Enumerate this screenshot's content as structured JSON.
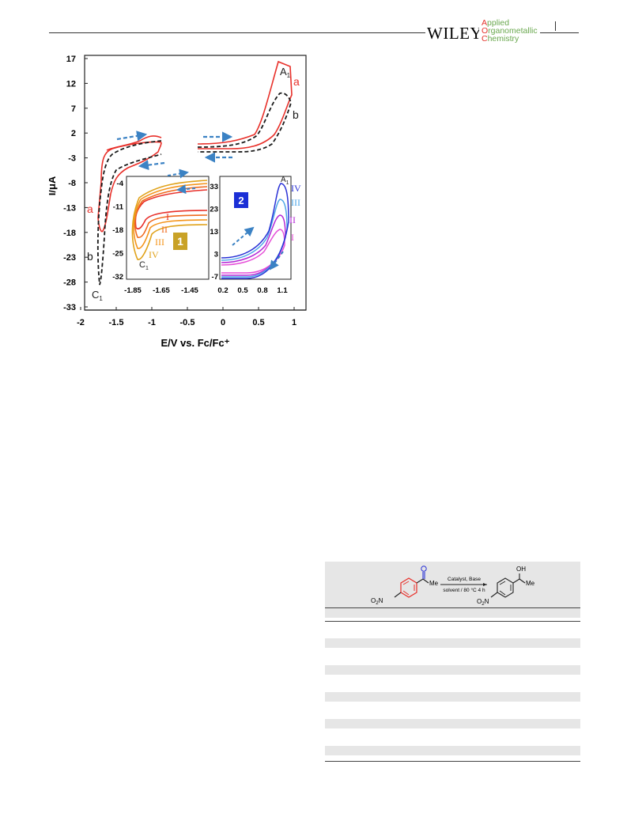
{
  "header": {
    "publisher": "WILEY",
    "journal_lines": [
      {
        "cap": "A",
        "rest": "pplied"
      },
      {
        "cap": "O",
        "rest": "rganometallic"
      },
      {
        "cap": "C",
        "rest": "hemistry"
      }
    ]
  },
  "figure": {
    "chart_data": [
      {
        "type": "line",
        "xlabel": "E/V  vs. Fc/Fc⁺",
        "ylabel": "I/μA",
        "x_ticks": [
          "-2",
          "-1.5",
          "-1",
          "-0.5",
          "0",
          "0.5",
          "1"
        ],
        "y_ticks": [
          "17",
          "12",
          "7",
          "2",
          "-3",
          "-8",
          "-13",
          "-18",
          "-23",
          "-28",
          "-33"
        ],
        "xlim": [
          -2,
          1.2
        ],
        "ylim": [
          -33,
          17
        ],
        "series": [
          {
            "name": "a",
            "color": "#e8302a",
            "style": "solid"
          },
          {
            "name": "b",
            "color": "#1a1a1a",
            "style": "dashed"
          }
        ],
        "peak_labels": [
          "A",
          "C"
        ],
        "peak_subscript": "1",
        "arrow_color": "#3b82c4"
      },
      {
        "type": "line",
        "panel_label": "1",
        "x_ticks": [
          "-1.85",
          "-1.65",
          "-1.45"
        ],
        "y_ticks": [
          "-4",
          "-11",
          "-18",
          "-25",
          "-32"
        ],
        "curve_labels": [
          "I",
          "II",
          "III",
          "IV"
        ],
        "colors": [
          "#e8302a",
          "#ef6a1e",
          "#f4951c",
          "#e0a21a"
        ],
        "panel_color": "#c9a227",
        "peak_label": "C",
        "peak_subscript": "1"
      },
      {
        "type": "line",
        "panel_label": "2",
        "x_ticks": [
          "0.2",
          "0.5",
          "0.8",
          "1.1"
        ],
        "y_ticks": [
          "33",
          "23",
          "13",
          "3",
          "-7"
        ],
        "curve_labels": [
          "IV",
          "III",
          "II",
          "I"
        ],
        "colors": [
          "#2a32d6",
          "#4ea6e8",
          "#b42ad6",
          "#e64fd8"
        ],
        "panel_color": "#1b2fd6",
        "peak_label": "A",
        "peak_subscript": "1"
      }
    ]
  },
  "scheme": {
    "reactant_substituent": "Me",
    "product_substituent_top": "OH",
    "product_substituent_right": "Me",
    "nitro_o": "O",
    "nitro_sub": "2",
    "nitro_n": "N",
    "reagents": "Catalyst, Base",
    "conditions": "solvent / 80 °C  4 h"
  }
}
